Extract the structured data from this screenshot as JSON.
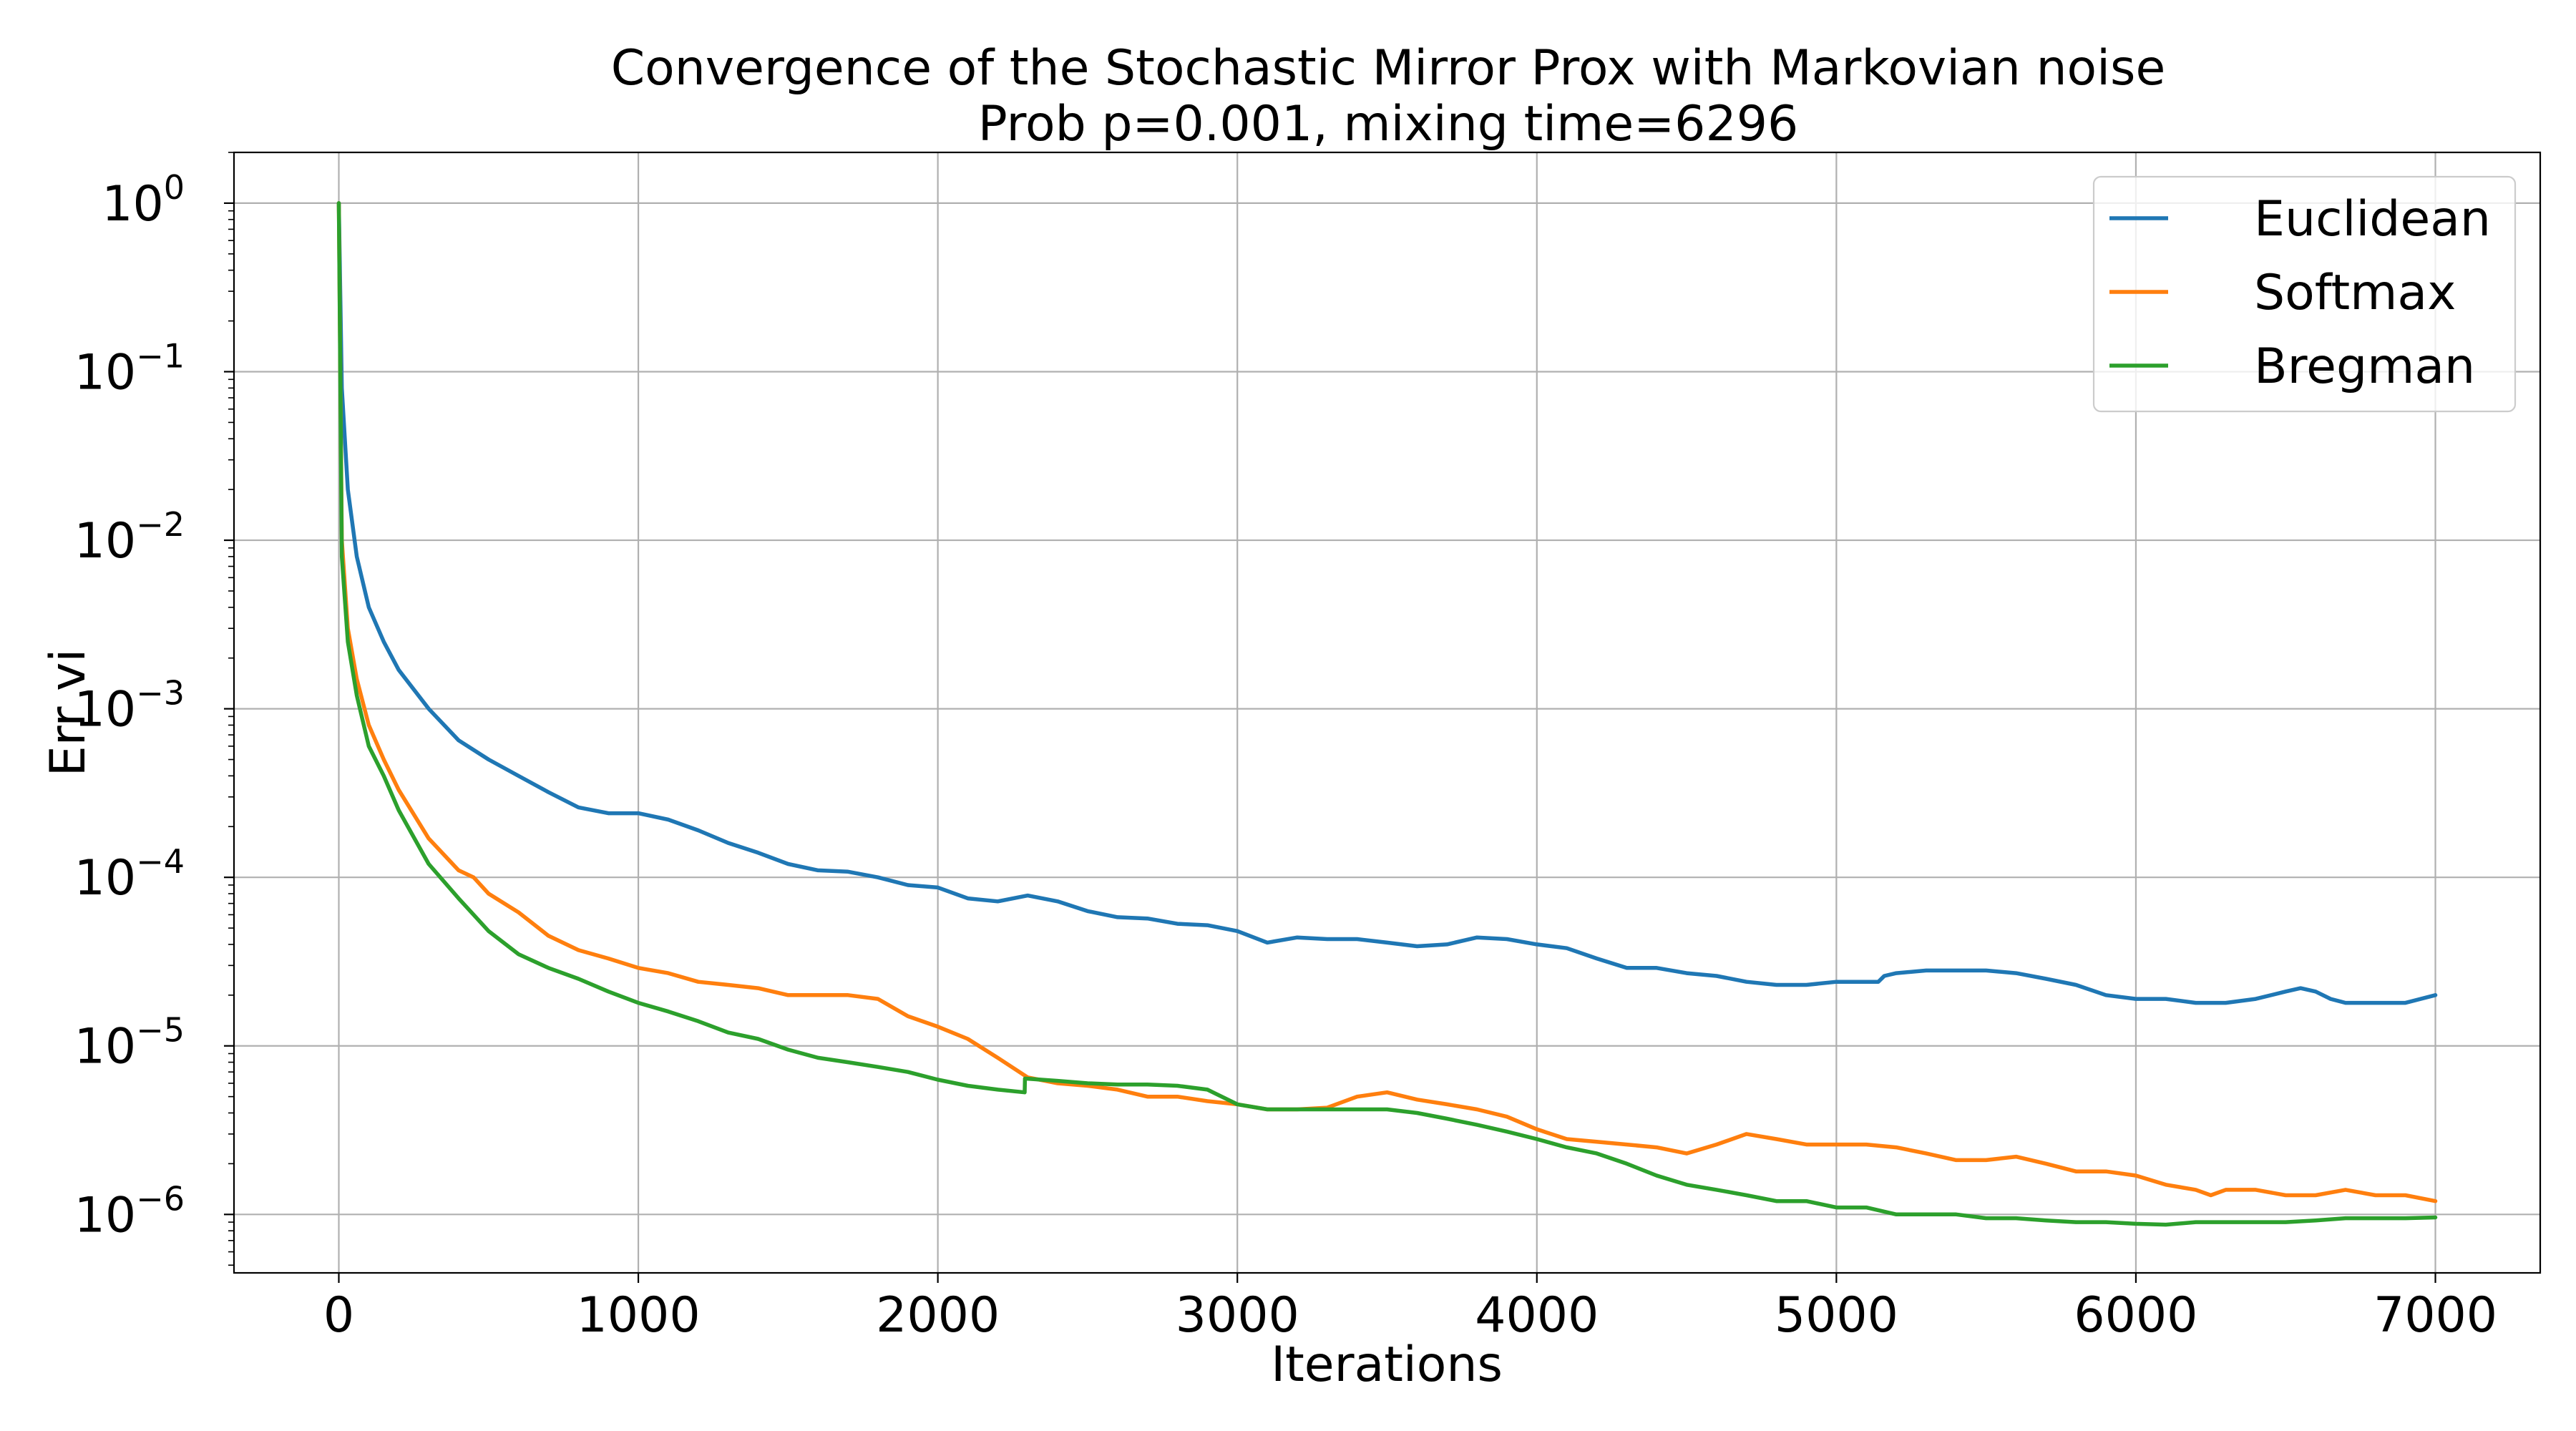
{
  "chart_data": {
    "type": "line",
    "title": "Convergence of the Stochastic Mirror Prox with Markovian noise",
    "subtitle": "Prob p=0.001, mixing time=6296",
    "xlabel": "Iterations",
    "ylabel": "Err vi",
    "xlim": [
      -350,
      7350
    ],
    "ylim": [
      4.5e-07,
      2.0
    ],
    "yscale": "log",
    "grid": true,
    "legend_position": "top-right",
    "x_ticks": [
      0,
      1000,
      2000,
      3000,
      4000,
      5000,
      6000,
      7000
    ],
    "x_tick_labels": [
      "0",
      "1000",
      "2000",
      "3000",
      "4000",
      "5000",
      "6000",
      "7000"
    ],
    "y_ticks": [
      1,
      0.1,
      0.01,
      0.001,
      0.0001,
      1e-05,
      1e-06
    ],
    "y_tick_labels": [
      {
        "base": "10",
        "exp": "0"
      },
      {
        "base": "10",
        "exp": "−1"
      },
      {
        "base": "10",
        "exp": "−2"
      },
      {
        "base": "10",
        "exp": "−3"
      },
      {
        "base": "10",
        "exp": "−4"
      },
      {
        "base": "10",
        "exp": "−5"
      },
      {
        "base": "10",
        "exp": "−6"
      }
    ],
    "series": [
      {
        "name": "Euclidean",
        "color": "#1f77b4",
        "x": [
          0,
          10,
          30,
          60,
          100,
          150,
          200,
          300,
          400,
          500,
          600,
          700,
          800,
          900,
          1000,
          1100,
          1200,
          1300,
          1400,
          1500,
          1600,
          1700,
          1800,
          1900,
          2000,
          2100,
          2200,
          2300,
          2400,
          2500,
          2600,
          2700,
          2800,
          2900,
          3000,
          3100,
          3200,
          3300,
          3400,
          3500,
          3600,
          3700,
          3800,
          3900,
          4000,
          4100,
          4200,
          4300,
          4400,
          4500,
          4600,
          4700,
          4800,
          4900,
          5000,
          5100,
          5140,
          5160,
          5200,
          5300,
          5400,
          5500,
          5600,
          5700,
          5800,
          5900,
          6000,
          6100,
          6200,
          6300,
          6400,
          6500,
          6550,
          6600,
          6650,
          6700,
          6800,
          6900,
          7000
        ],
        "y": [
          1.0,
          0.08,
          0.02,
          0.008,
          0.004,
          0.0025,
          0.0017,
          0.001,
          0.00065,
          0.0005,
          0.0004,
          0.00032,
          0.00026,
          0.00024,
          0.00024,
          0.00022,
          0.00019,
          0.00016,
          0.00014,
          0.00012,
          0.00011,
          0.000108,
          0.0001,
          9e-05,
          8.7e-05,
          7.5e-05,
          7.2e-05,
          7.8e-05,
          7.2e-05,
          6.3e-05,
          5.8e-05,
          5.7e-05,
          5.3e-05,
          5.2e-05,
          4.8e-05,
          4.1e-05,
          4.4e-05,
          4.3e-05,
          4.3e-05,
          4.1e-05,
          3.9e-05,
          4e-05,
          4.4e-05,
          4.3e-05,
          4e-05,
          3.8e-05,
          3.3e-05,
          2.9e-05,
          2.9e-05,
          2.7e-05,
          2.6e-05,
          2.4e-05,
          2.3e-05,
          2.3e-05,
          2.4e-05,
          2.4e-05,
          2.4e-05,
          2.6e-05,
          2.7e-05,
          2.8e-05,
          2.8e-05,
          2.8e-05,
          2.7e-05,
          2.5e-05,
          2.3e-05,
          2e-05,
          1.9e-05,
          1.9e-05,
          1.8e-05,
          1.8e-05,
          1.9e-05,
          2.1e-05,
          2.2e-05,
          2.1e-05,
          1.9e-05,
          1.8e-05,
          1.8e-05,
          1.8e-05,
          2e-05
        ]
      },
      {
        "name": "Softmax",
        "color": "#ff7f0e",
        "x": [
          0,
          10,
          30,
          60,
          100,
          150,
          200,
          300,
          400,
          450,
          500,
          600,
          700,
          800,
          900,
          1000,
          1100,
          1200,
          1300,
          1400,
          1500,
          1600,
          1700,
          1800,
          1900,
          2000,
          2100,
          2200,
          2300,
          2400,
          2500,
          2600,
          2700,
          2800,
          2900,
          3000,
          3100,
          3200,
          3300,
          3400,
          3500,
          3600,
          3700,
          3800,
          3900,
          4000,
          4100,
          4200,
          4300,
          4400,
          4500,
          4600,
          4700,
          4800,
          4900,
          5000,
          5100,
          5200,
          5300,
          5400,
          5500,
          5600,
          5700,
          5800,
          5900,
          6000,
          6100,
          6200,
          6250,
          6300,
          6400,
          6500,
          6600,
          6700,
          6800,
          6900,
          7000
        ],
        "y": [
          1.0,
          0.01,
          0.003,
          0.0015,
          0.0008,
          0.0005,
          0.00033,
          0.00017,
          0.00011,
          0.0001,
          8e-05,
          6.2e-05,
          4.5e-05,
          3.7e-05,
          3.3e-05,
          2.9e-05,
          2.7e-05,
          2.4e-05,
          2.3e-05,
          2.2e-05,
          2e-05,
          2e-05,
          2e-05,
          1.9e-05,
          1.5e-05,
          1.3e-05,
          1.1e-05,
          8.5e-06,
          6.5e-06,
          6e-06,
          5.8e-06,
          5.5e-06,
          5e-06,
          5e-06,
          4.7e-06,
          4.5e-06,
          4.2e-06,
          4.2e-06,
          4.3e-06,
          5e-06,
          5.3e-06,
          4.8e-06,
          4.5e-06,
          4.2e-06,
          3.8e-06,
          3.2e-06,
          2.8e-06,
          2.7e-06,
          2.6e-06,
          2.5e-06,
          2.3e-06,
          2.6e-06,
          3e-06,
          2.8e-06,
          2.6e-06,
          2.6e-06,
          2.6e-06,
          2.5e-06,
          2.3e-06,
          2.1e-06,
          2.1e-06,
          2.2e-06,
          2e-06,
          1.8e-06,
          1.8e-06,
          1.7e-06,
          1.5e-06,
          1.4e-06,
          1.3e-06,
          1.4e-06,
          1.4e-06,
          1.3e-06,
          1.3e-06,
          1.4e-06,
          1.3e-06,
          1.3e-06,
          1.2e-06
        ]
      },
      {
        "name": "Bregman",
        "color": "#2ca02c",
        "x": [
          0,
          10,
          30,
          60,
          100,
          150,
          200,
          300,
          400,
          500,
          600,
          700,
          800,
          900,
          1000,
          1100,
          1200,
          1300,
          1400,
          1500,
          1600,
          1700,
          1800,
          1900,
          2000,
          2100,
          2200,
          2290,
          2291,
          2400,
          2500,
          2600,
          2700,
          2800,
          2900,
          3000,
          3100,
          3200,
          3300,
          3400,
          3500,
          3600,
          3700,
          3800,
          3900,
          4000,
          4100,
          4200,
          4300,
          4400,
          4500,
          4600,
          4700,
          4800,
          4900,
          5000,
          5100,
          5200,
          5300,
          5400,
          5500,
          5600,
          5700,
          5800,
          5900,
          6000,
          6100,
          6200,
          6300,
          6400,
          6500,
          6600,
          6700,
          6800,
          6900,
          7000
        ],
        "y": [
          1.0,
          0.008,
          0.0025,
          0.0012,
          0.0006,
          0.0004,
          0.00025,
          0.00012,
          7.5e-05,
          4.8e-05,
          3.5e-05,
          2.9e-05,
          2.5e-05,
          2.1e-05,
          1.8e-05,
          1.6e-05,
          1.4e-05,
          1.2e-05,
          1.1e-05,
          9.5e-06,
          8.5e-06,
          8e-06,
          7.5e-06,
          7e-06,
          6.3e-06,
          5.8e-06,
          5.5e-06,
          5.3e-06,
          6.4e-06,
          6.2e-06,
          6e-06,
          5.9e-06,
          5.9e-06,
          5.8e-06,
          5.5e-06,
          4.5e-06,
          4.2e-06,
          4.2e-06,
          4.2e-06,
          4.2e-06,
          4.2e-06,
          4e-06,
          3.7e-06,
          3.4e-06,
          3.1e-06,
          2.8e-06,
          2.5e-06,
          2.3e-06,
          2e-06,
          1.7e-06,
          1.5e-06,
          1.4e-06,
          1.3e-06,
          1.2e-06,
          1.2e-06,
          1.1e-06,
          1.1e-06,
          1e-06,
          1e-06,
          1e-06,
          9.5e-07,
          9.5e-07,
          9.2e-07,
          9e-07,
          9e-07,
          8.8e-07,
          8.7e-07,
          9e-07,
          9e-07,
          9e-07,
          9e-07,
          9.2e-07,
          9.5e-07,
          9.5e-07,
          9.5e-07,
          9.6e-07
        ]
      }
    ]
  }
}
